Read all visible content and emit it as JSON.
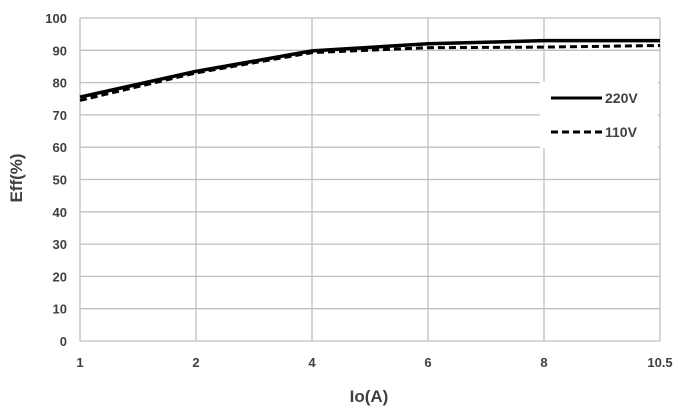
{
  "chart_data": {
    "type": "line",
    "xlabel": "Io(A)",
    "ylabel": "Eff(%)",
    "x": [
      1,
      2,
      4,
      6,
      8,
      10.5
    ],
    "x_tick_labels": [
      "1",
      "2",
      "4",
      "6",
      "8",
      "10.5"
    ],
    "x_scale": "categorical-evenly-spaced",
    "ylim": [
      0,
      100
    ],
    "y_ticks": [
      0,
      10,
      20,
      30,
      40,
      50,
      60,
      70,
      80,
      90,
      100
    ],
    "grid": true,
    "legend_position": "right",
    "series": [
      {
        "name": "220V",
        "style": "solid",
        "color": "#000000",
        "values": [
          75.5,
          83.5,
          89.8,
          92,
          93,
          93
        ]
      },
      {
        "name": "110V",
        "style": "dashed",
        "color": "#000000",
        "values": [
          74.5,
          83,
          89.3,
          90.8,
          91,
          91.5
        ]
      }
    ]
  }
}
